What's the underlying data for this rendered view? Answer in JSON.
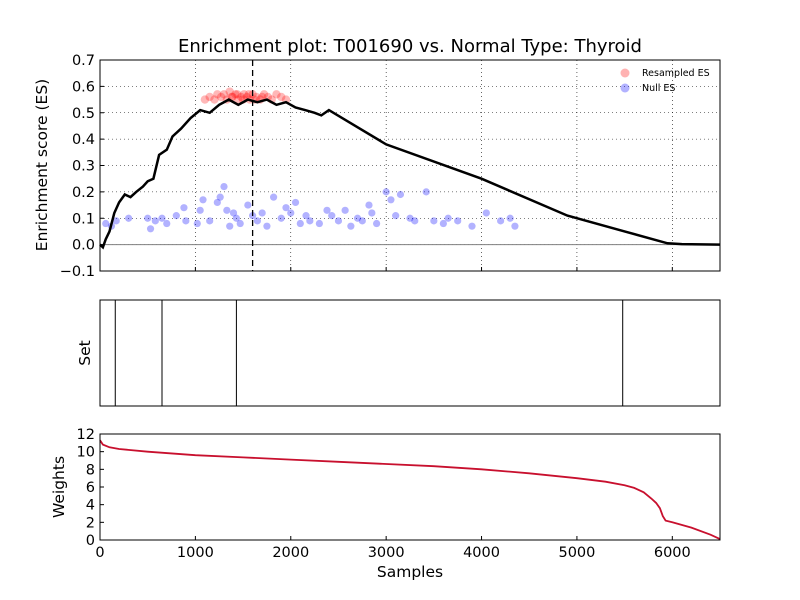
{
  "colors": {
    "es_curve": "#000000",
    "resampled": "#ff0000",
    "null_es": "#0000ff",
    "weights": "#c8102e",
    "zero_line": "#808080"
  },
  "chart_data": [
    {
      "type": "line",
      "title": "Enrichment plot: T001690 vs. Normal Type: Thyroid",
      "ylabel": "Enrichment score (ES)",
      "xlim": [
        0,
        6500
      ],
      "ylim": [
        -0.1,
        0.7
      ],
      "yticks": [
        "−0.1",
        "0.0",
        "0.1",
        "0.2",
        "0.3",
        "0.4",
        "0.5",
        "0.6",
        "0.7"
      ],
      "grid": true,
      "legend_position": "top-right",
      "legend": [
        "Resampled ES",
        "Null ES"
      ],
      "vline_x": 1600,
      "es_curve": [
        [
          0,
          0.0
        ],
        [
          30,
          -0.01
        ],
        [
          60,
          0.02
        ],
        [
          100,
          0.05
        ],
        [
          150,
          0.12
        ],
        [
          200,
          0.16
        ],
        [
          260,
          0.19
        ],
        [
          320,
          0.18
        ],
        [
          380,
          0.2
        ],
        [
          450,
          0.22
        ],
        [
          500,
          0.24
        ],
        [
          560,
          0.25
        ],
        [
          620,
          0.34
        ],
        [
          700,
          0.36
        ],
        [
          760,
          0.41
        ],
        [
          850,
          0.44
        ],
        [
          950,
          0.48
        ],
        [
          1050,
          0.51
        ],
        [
          1150,
          0.5
        ],
        [
          1250,
          0.53
        ],
        [
          1350,
          0.55
        ],
        [
          1450,
          0.53
        ],
        [
          1550,
          0.55
        ],
        [
          1650,
          0.54
        ],
        [
          1750,
          0.55
        ],
        [
          1850,
          0.53
        ],
        [
          1950,
          0.54
        ],
        [
          2050,
          0.52
        ],
        [
          2150,
          0.51
        ],
        [
          2250,
          0.5
        ],
        [
          2320,
          0.49
        ],
        [
          2400,
          0.51
        ],
        [
          3000,
          0.38
        ],
        [
          4000,
          0.25
        ],
        [
          4900,
          0.11
        ],
        [
          5500,
          0.05
        ],
        [
          5950,
          0.005
        ],
        [
          6100,
          0.002
        ],
        [
          6500,
          0.0
        ]
      ],
      "resampled_es": [
        [
          1100,
          0.55
        ],
        [
          1150,
          0.56
        ],
        [
          1200,
          0.55
        ],
        [
          1230,
          0.57
        ],
        [
          1270,
          0.56
        ],
        [
          1300,
          0.57
        ],
        [
          1330,
          0.55
        ],
        [
          1360,
          0.58
        ],
        [
          1390,
          0.56
        ],
        [
          1420,
          0.57
        ],
        [
          1450,
          0.55
        ],
        [
          1480,
          0.56
        ],
        [
          1510,
          0.57
        ],
        [
          1540,
          0.56
        ],
        [
          1570,
          0.55
        ],
        [
          1600,
          0.57
        ],
        [
          1640,
          0.56
        ],
        [
          1680,
          0.55
        ],
        [
          1720,
          0.57
        ],
        [
          1760,
          0.56
        ],
        [
          1800,
          0.55
        ],
        [
          1850,
          0.57
        ],
        [
          1900,
          0.56
        ],
        [
          1950,
          0.55
        ],
        [
          1380,
          0.56
        ],
        [
          1440,
          0.57
        ],
        [
          1500,
          0.55
        ],
        [
          1560,
          0.57
        ],
        [
          1620,
          0.55
        ],
        [
          1700,
          0.56
        ]
      ],
      "null_es": [
        [
          60,
          0.08
        ],
        [
          120,
          0.07
        ],
        [
          170,
          0.09
        ],
        [
          300,
          0.1
        ],
        [
          500,
          0.1
        ],
        [
          530,
          0.06
        ],
        [
          580,
          0.09
        ],
        [
          650,
          0.1
        ],
        [
          700,
          0.08
        ],
        [
          800,
          0.11
        ],
        [
          880,
          0.14
        ],
        [
          900,
          0.09
        ],
        [
          1020,
          0.08
        ],
        [
          1050,
          0.13
        ],
        [
          1080,
          0.17
        ],
        [
          1150,
          0.09
        ],
        [
          1230,
          0.16
        ],
        [
          1260,
          0.18
        ],
        [
          1300,
          0.22
        ],
        [
          1330,
          0.13
        ],
        [
          1360,
          0.07
        ],
        [
          1400,
          0.12
        ],
        [
          1430,
          0.1
        ],
        [
          1470,
          0.08
        ],
        [
          1550,
          0.15
        ],
        [
          1600,
          0.11
        ],
        [
          1650,
          0.09
        ],
        [
          1700,
          0.12
        ],
        [
          1750,
          0.07
        ],
        [
          1820,
          0.18
        ],
        [
          1900,
          0.1
        ],
        [
          1950,
          0.14
        ],
        [
          2000,
          0.12
        ],
        [
          2050,
          0.16
        ],
        [
          2100,
          0.08
        ],
        [
          2160,
          0.11
        ],
        [
          2200,
          0.09
        ],
        [
          2300,
          0.08
        ],
        [
          2380,
          0.13
        ],
        [
          2430,
          0.11
        ],
        [
          2500,
          0.09
        ],
        [
          2570,
          0.13
        ],
        [
          2630,
          0.07
        ],
        [
          2700,
          0.1
        ],
        [
          2750,
          0.09
        ],
        [
          2820,
          0.15
        ],
        [
          2850,
          0.12
        ],
        [
          2900,
          0.08
        ],
        [
          3000,
          0.2
        ],
        [
          3050,
          0.17
        ],
        [
          3100,
          0.11
        ],
        [
          3150,
          0.19
        ],
        [
          3250,
          0.1
        ],
        [
          3300,
          0.09
        ],
        [
          3420,
          0.2
        ],
        [
          3500,
          0.09
        ],
        [
          3600,
          0.08
        ],
        [
          3650,
          0.1
        ],
        [
          3750,
          0.09
        ],
        [
          3900,
          0.07
        ],
        [
          4050,
          0.12
        ],
        [
          4200,
          0.09
        ],
        [
          4300,
          0.1
        ],
        [
          4350,
          0.07
        ]
      ]
    },
    {
      "type": "line",
      "ylabel": "Set",
      "xlim": [
        0,
        6500
      ],
      "set_positions": [
        160,
        650,
        1430,
        5480
      ]
    },
    {
      "type": "area",
      "xlabel": "Samples",
      "ylabel": "Weights",
      "xlim": [
        0,
        6500
      ],
      "ylim": [
        0,
        12
      ],
      "xticks": [
        "0",
        "1000",
        "2000",
        "3000",
        "4000",
        "5000",
        "6000"
      ],
      "yticks": [
        "0",
        "2",
        "4",
        "6",
        "8",
        "10",
        "12"
      ],
      "weights": [
        [
          0,
          11.3
        ],
        [
          30,
          10.8
        ],
        [
          100,
          10.5
        ],
        [
          200,
          10.3
        ],
        [
          500,
          10.0
        ],
        [
          1000,
          9.6
        ],
        [
          1500,
          9.35
        ],
        [
          2000,
          9.1
        ],
        [
          2500,
          8.85
        ],
        [
          3000,
          8.6
        ],
        [
          3500,
          8.35
        ],
        [
          4000,
          8.0
        ],
        [
          4500,
          7.55
        ],
        [
          5000,
          7.0
        ],
        [
          5300,
          6.6
        ],
        [
          5500,
          6.2
        ],
        [
          5600,
          5.9
        ],
        [
          5700,
          5.4
        ],
        [
          5780,
          4.7
        ],
        [
          5830,
          4.2
        ],
        [
          5870,
          3.6
        ],
        [
          5900,
          2.7
        ],
        [
          5930,
          2.2
        ],
        [
          6000,
          2.0
        ],
        [
          6200,
          1.4
        ],
        [
          6400,
          0.6
        ],
        [
          6500,
          0.1
        ]
      ]
    }
  ]
}
